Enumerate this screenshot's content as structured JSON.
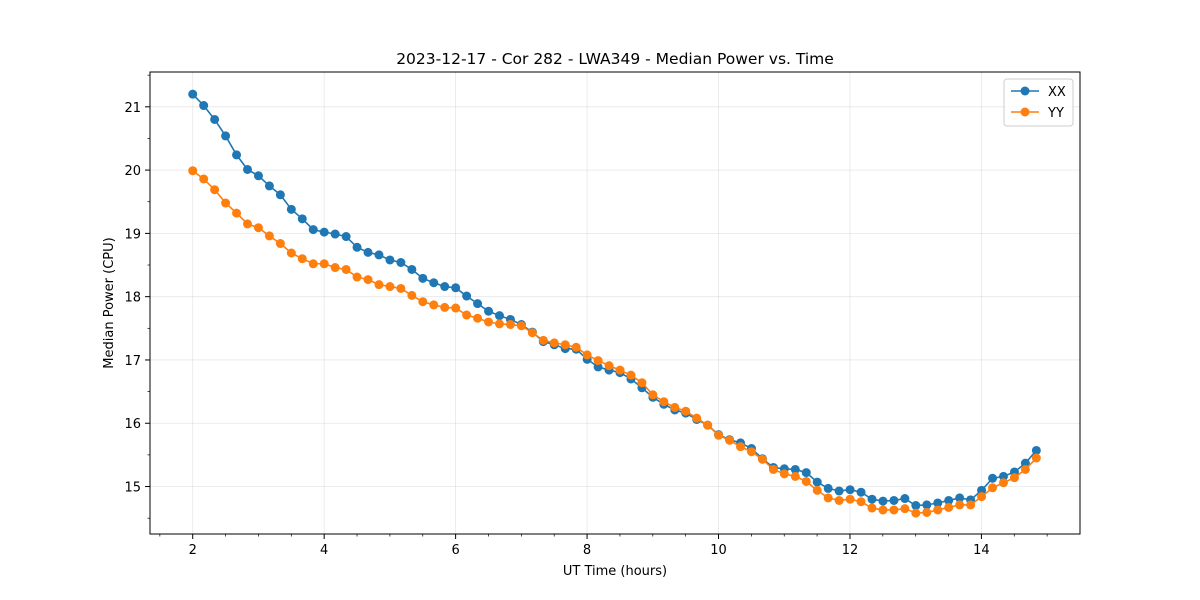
{
  "chart_data": {
    "type": "line",
    "title": "2023-12-17 - Cor 282 - LWA349 - Median Power vs. Time",
    "xlabel": "UT Time (hours)",
    "ylabel": "Median Power (CPU)",
    "xlim": [
      1.35,
      15.5
    ],
    "ylim": [
      14.25,
      21.55
    ],
    "xticks": [
      2,
      4,
      6,
      8,
      10,
      12,
      14
    ],
    "xtick_labels": [
      "2",
      "4",
      "6",
      "8",
      "10",
      "12",
      "14"
    ],
    "yticks": [
      15,
      16,
      17,
      18,
      19,
      20,
      21
    ],
    "ytick_labels": [
      "15",
      "16",
      "17",
      "18",
      "19",
      "20",
      "21"
    ],
    "grid": true,
    "legend": "top-right",
    "x_start": 2.0,
    "x_step": 0.1667,
    "series": [
      {
        "name": "XX",
        "color": "#1f77b4",
        "marker": "circle",
        "values": [
          21.2,
          21.02,
          20.8,
          20.54,
          20.24,
          20.01,
          19.91,
          19.75,
          19.61,
          19.38,
          19.23,
          19.06,
          19.02,
          18.99,
          18.95,
          18.78,
          18.7,
          18.66,
          18.58,
          18.54,
          18.43,
          18.29,
          18.22,
          18.16,
          18.14,
          18.01,
          17.89,
          17.77,
          17.7,
          17.64,
          17.56,
          17.44,
          17.29,
          17.24,
          17.18,
          17.17,
          17.01,
          16.89,
          16.84,
          16.8,
          16.7,
          16.56,
          16.41,
          16.3,
          16.21,
          16.16,
          16.06,
          15.97,
          15.82,
          15.74,
          15.69,
          15.6,
          15.44,
          15.3,
          15.28,
          15.27,
          15.22,
          15.07,
          14.97,
          14.93,
          14.95,
          14.91,
          14.8,
          14.77,
          14.78,
          14.81,
          14.7,
          14.71,
          14.74,
          14.78,
          14.82,
          14.79,
          14.94,
          15.13,
          15.16,
          15.23,
          15.37,
          15.57
        ]
      },
      {
        "name": "YY",
        "color": "#ff7f0e",
        "marker": "circle",
        "values": [
          19.99,
          19.86,
          19.69,
          19.48,
          19.32,
          19.15,
          19.09,
          18.96,
          18.84,
          18.69,
          18.6,
          18.52,
          18.52,
          18.46,
          18.43,
          18.31,
          18.27,
          18.19,
          18.16,
          18.13,
          18.02,
          17.92,
          17.87,
          17.83,
          17.82,
          17.71,
          17.66,
          17.6,
          17.57,
          17.56,
          17.54,
          17.43,
          17.31,
          17.27,
          17.24,
          17.2,
          17.08,
          16.99,
          16.91,
          16.84,
          16.76,
          16.64,
          16.45,
          16.34,
          16.25,
          16.19,
          16.08,
          15.97,
          15.81,
          15.73,
          15.63,
          15.55,
          15.43,
          15.27,
          15.2,
          15.16,
          15.08,
          14.94,
          14.82,
          14.78,
          14.8,
          14.76,
          14.66,
          14.63,
          14.63,
          14.65,
          14.58,
          14.59,
          14.63,
          14.67,
          14.71,
          14.71,
          14.84,
          14.98,
          15.06,
          15.14,
          15.27,
          15.45
        ]
      }
    ]
  }
}
